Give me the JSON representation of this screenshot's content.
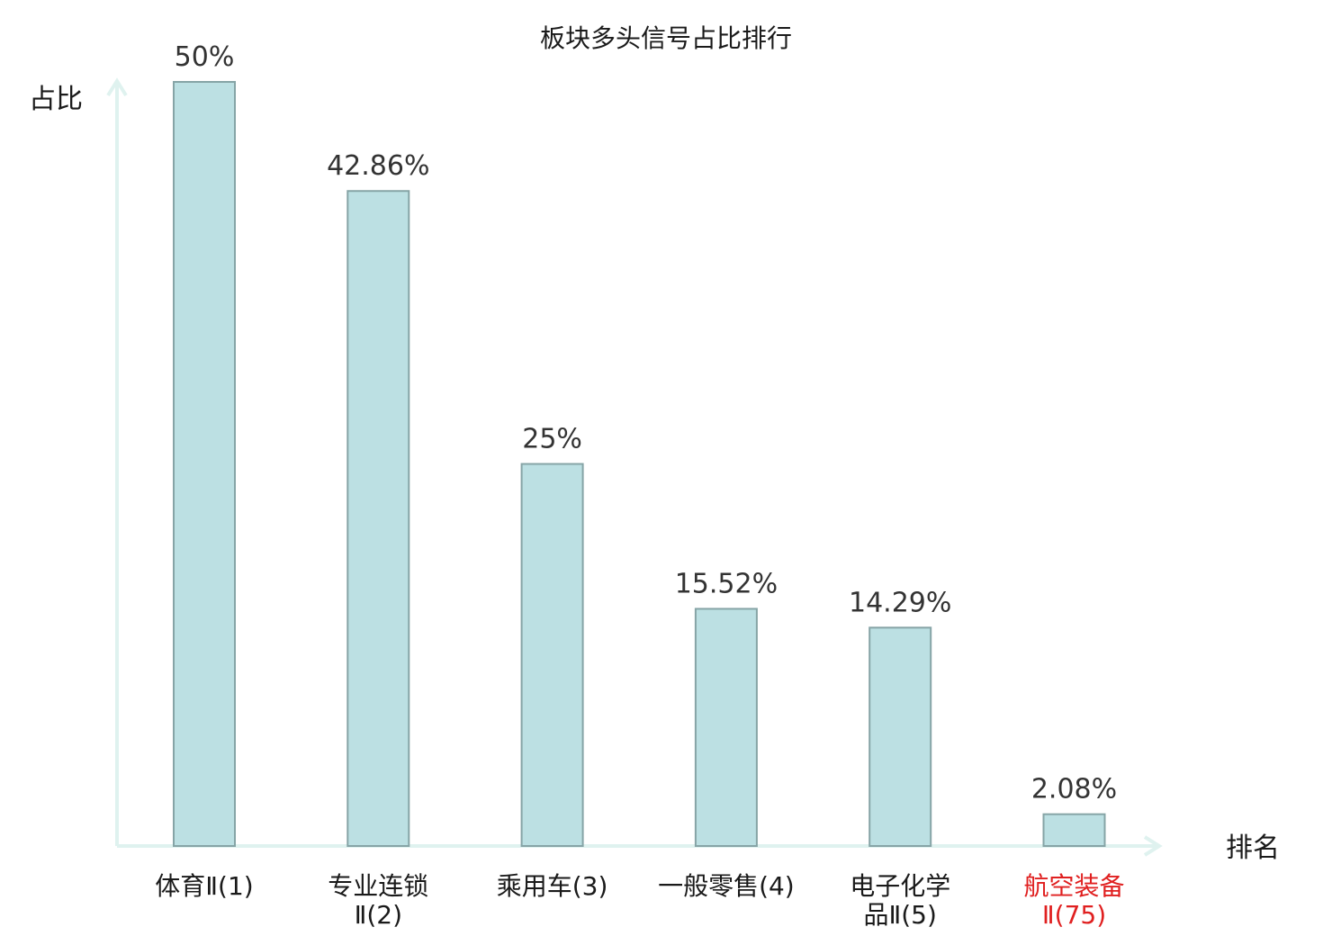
{
  "chart_data": {
    "type": "bar",
    "title": "板块多头信号占比排行",
    "ylabel": "占比",
    "xlabel": "排名",
    "ylim": [
      0,
      50
    ],
    "grid": false,
    "categories": [
      {
        "lines": [
          "体育Ⅱ(1)"
        ],
        "highlight": false
      },
      {
        "lines": [
          "专业连锁",
          "Ⅱ(2)"
        ],
        "highlight": false
      },
      {
        "lines": [
          "乘用车(3)"
        ],
        "highlight": false
      },
      {
        "lines": [
          "一般零售(4)"
        ],
        "highlight": false
      },
      {
        "lines": [
          "电子化学",
          "品Ⅱ(5)"
        ],
        "highlight": false
      },
      {
        "lines": [
          "航空装备",
          "Ⅱ(75)"
        ],
        "highlight": true
      }
    ],
    "values": [
      50,
      42.86,
      25,
      15.52,
      14.29,
      2.08
    ],
    "value_labels": [
      "50%",
      "42.86%",
      "25%",
      "15.52%",
      "14.29%",
      "2.08%"
    ],
    "colors": {
      "bar_fill": "#bce0e3",
      "bar_stroke": "#86a4a6",
      "axis": "#dff2ef",
      "highlight": "#e02020",
      "normal_text": "#1a1a1a"
    }
  }
}
